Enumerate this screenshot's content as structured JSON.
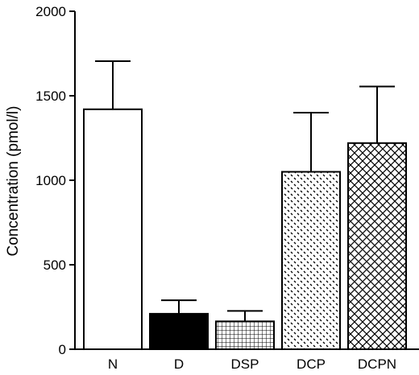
{
  "chart_data": {
    "type": "bar",
    "title": "",
    "xlabel": "",
    "ylabel": "Concentration (pmol/l)",
    "ylim": [
      0,
      2000
    ],
    "yticks": [
      0,
      500,
      1000,
      1500,
      2000
    ],
    "categories": [
      "N",
      "D",
      "DSP",
      "DCP",
      "DCPN"
    ],
    "values": [
      1420,
      210,
      165,
      1050,
      1220
    ],
    "errors": [
      285,
      80,
      62,
      350,
      335
    ],
    "fills": [
      "white",
      "solid-black",
      "grid-hatch",
      "dot-hatch",
      "cross-hatch"
    ],
    "grid": false,
    "legend": "none"
  }
}
